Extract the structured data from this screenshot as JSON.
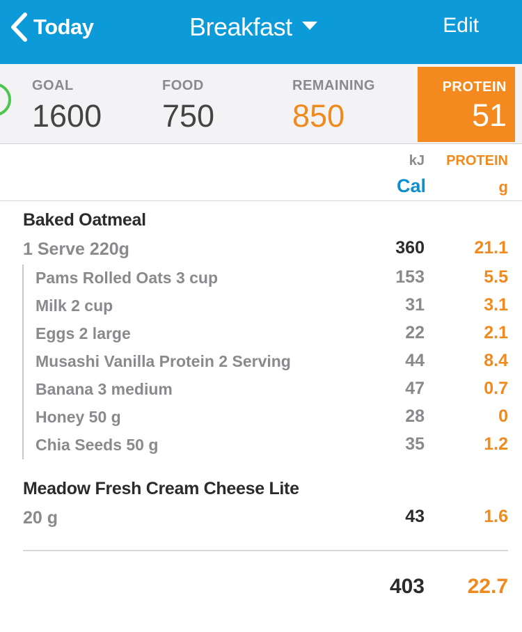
{
  "header": {
    "back_label": "Today",
    "title": "Breakfast",
    "edit_label": "Edit",
    "bg_color": "#0d9ad8"
  },
  "summary": {
    "goal_label": "GOAL",
    "goal_value": "1600",
    "food_label": "FOOD",
    "food_value": "750",
    "remaining_label": "REMAINING",
    "remaining_value": "850",
    "protein_label": "PROTEIN",
    "protein_value": "51",
    "remaining_color": "#f08a1d",
    "protein_bg": "#f48a1f",
    "ring_color": "#4cc64c"
  },
  "columns": {
    "energy_alt_unit": "kJ",
    "energy_unit": "Cal",
    "protein_label": "PROTEIN",
    "protein_unit": "g"
  },
  "entries": [
    {
      "name": "Baked Oatmeal",
      "serving": "1 Serve 220g",
      "cal": "360",
      "protein": "21.1",
      "ingredients": [
        {
          "name": "Pams Rolled Oats  3 cup",
          "cal": "153",
          "protein": "5.5"
        },
        {
          "name": "Milk  2 cup",
          "cal": "31",
          "protein": "3.1"
        },
        {
          "name": "Eggs  2 large",
          "cal": "22",
          "protein": "2.1"
        },
        {
          "name": "Musashi Vanilla Protein  2 Serving",
          "cal": "44",
          "protein": "8.4"
        },
        {
          "name": "Banana  3 medium",
          "cal": "47",
          "protein": "0.7"
        },
        {
          "name": "Honey  50 g",
          "cal": "28",
          "protein": "0"
        },
        {
          "name": "Chia Seeds  50 g",
          "cal": "35",
          "protein": "1.2"
        }
      ]
    },
    {
      "name": "Meadow Fresh Cream Cheese Lite",
      "serving": "20 g",
      "cal": "43",
      "protein": "1.6"
    }
  ],
  "totals": {
    "cal": "403",
    "protein": "22.7"
  }
}
